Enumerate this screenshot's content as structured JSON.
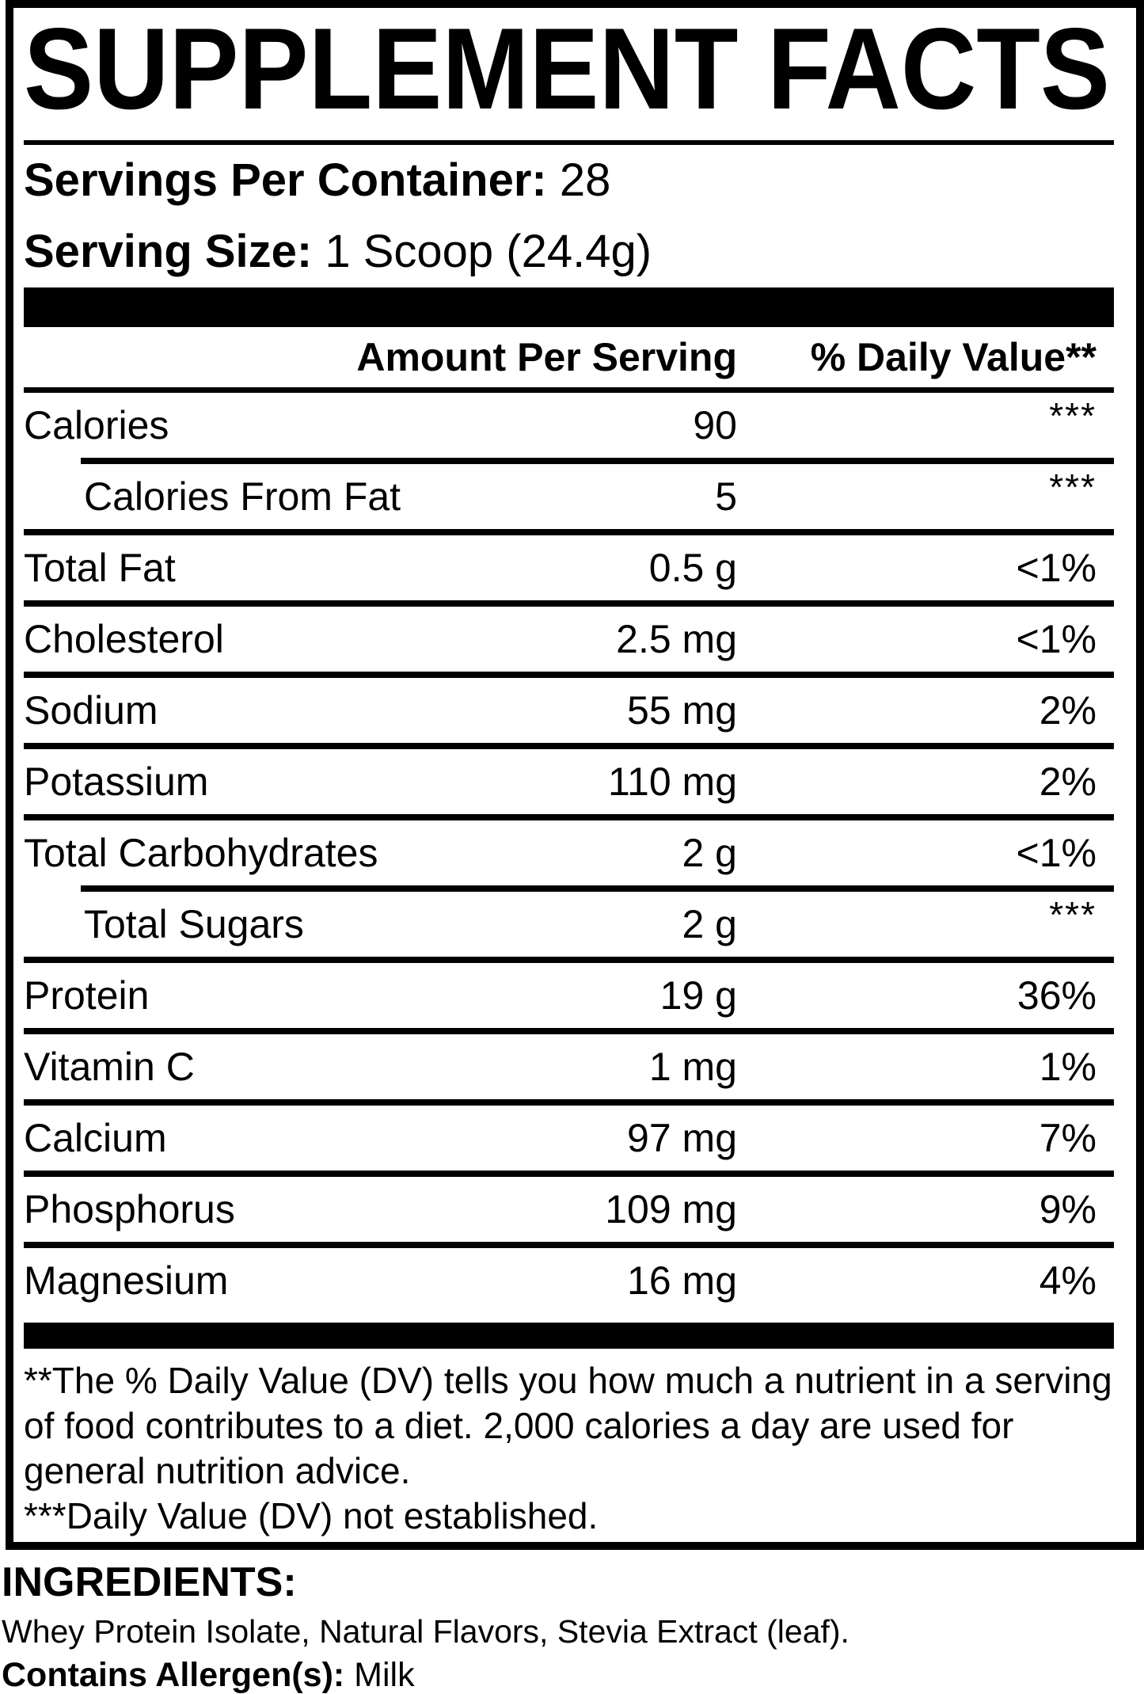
{
  "label": {
    "title": "SUPPLEMENT FACTS",
    "servings_label": "Servings Per Container:",
    "servings_value": "28",
    "serving_size_label": "Serving Size:",
    "serving_size_value": "1 Scoop (24.4g)",
    "columns": {
      "amount": "Amount Per Serving",
      "daily_value": "% Daily Value**"
    },
    "rows": [
      {
        "name": "Calories",
        "amount": "90",
        "dv": "***"
      },
      {
        "name": "Calories From Fat",
        "amount": "5",
        "dv": "***"
      },
      {
        "name": "Total Fat",
        "amount": "0.5 g",
        "dv": "<1%"
      },
      {
        "name": "Cholesterol",
        "amount": "2.5 mg",
        "dv": "<1%"
      },
      {
        "name": "Sodium",
        "amount": "55 mg",
        "dv": "2%"
      },
      {
        "name": "Potassium",
        "amount": "110 mg",
        "dv": "2%"
      },
      {
        "name": "Total Carbohydrates",
        "amount": "2 g",
        "dv": "<1%"
      },
      {
        "name": "Total Sugars",
        "amount": "2 g",
        "dv": "***"
      },
      {
        "name": "Protein",
        "amount": "19 g",
        "dv": "36%"
      },
      {
        "name": "Vitamin C",
        "amount": "1 mg",
        "dv": "1%"
      },
      {
        "name": "Calcium",
        "amount": "97 mg",
        "dv": "7%"
      },
      {
        "name": "Phosphorus",
        "amount": "109 mg",
        "dv": "9%"
      },
      {
        "name": "Magnesium",
        "amount": "16 mg",
        "dv": "4%"
      }
    ],
    "footnotes": [
      "**The % Daily Value (DV) tells you how much a nutrient in a serving of food contributes to a diet. 2,000 calories a day are used for general nutrition advice.",
      "***Daily Value (DV) not established."
    ]
  },
  "ingredients": {
    "title": "INGREDIENTS:",
    "list": "Whey Protein Isolate, Natural Flavors, Stevia Extract (leaf).",
    "allergen_label": "Contains Allergen(s):",
    "allergen_value": "Milk"
  },
  "colors": {
    "text": "#000000",
    "background": "#ffffff"
  }
}
